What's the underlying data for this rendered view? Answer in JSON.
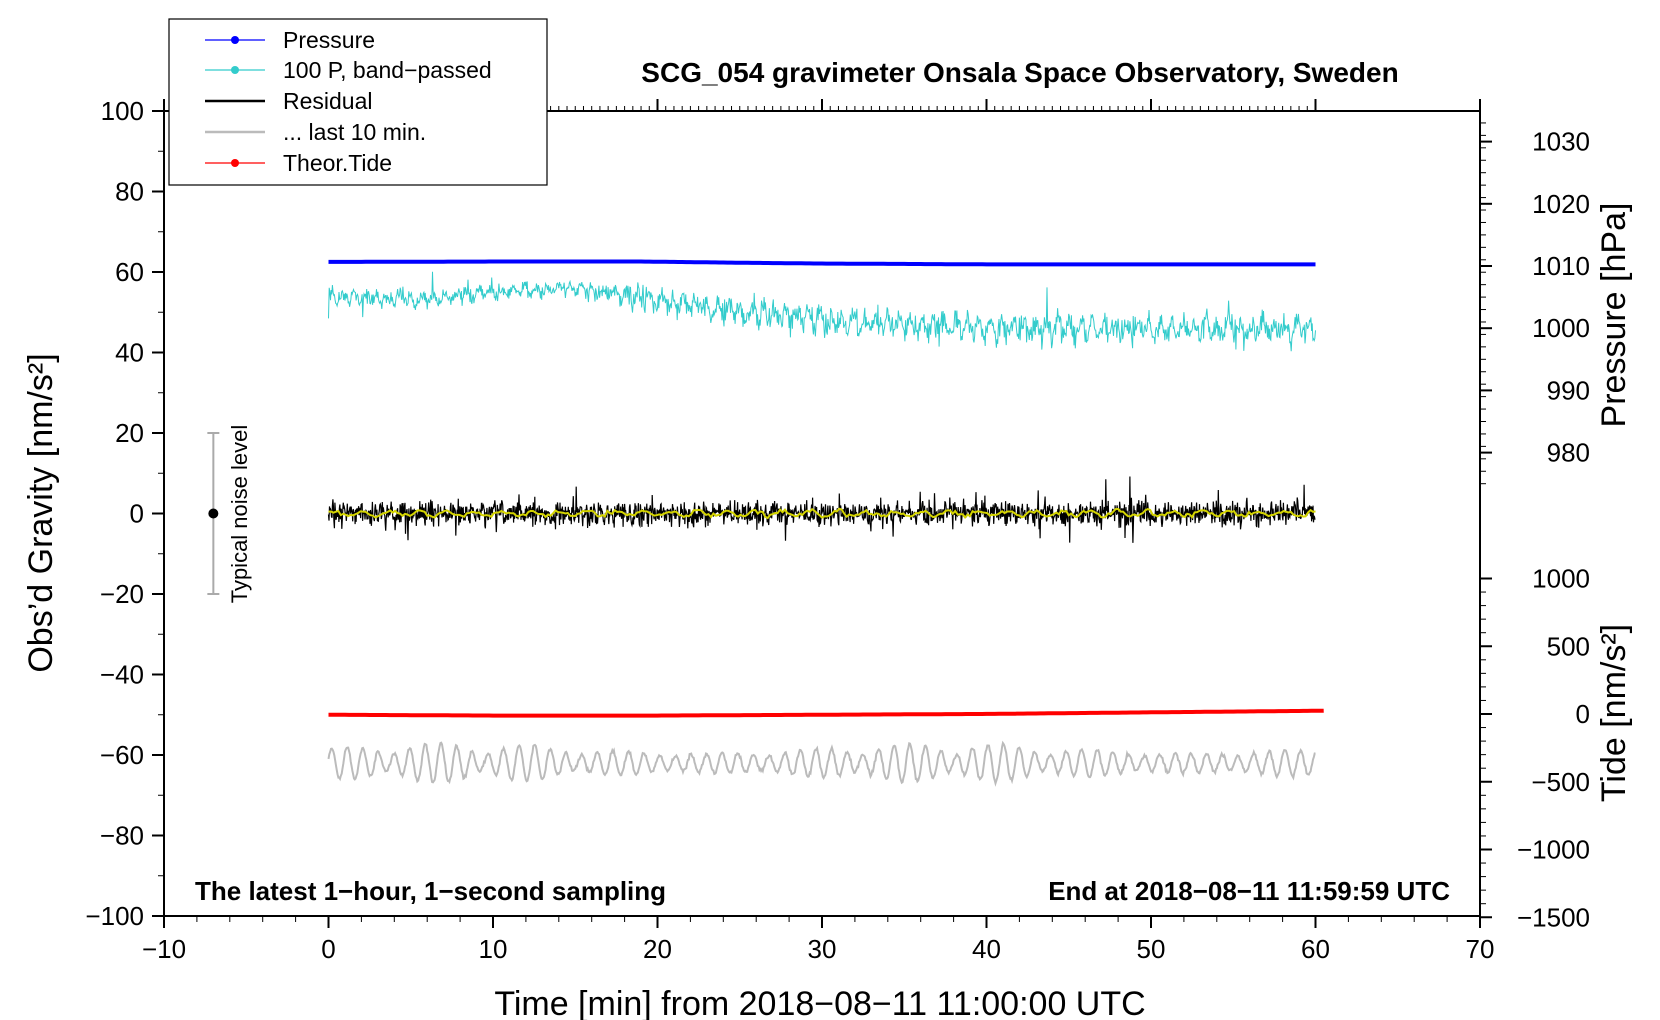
{
  "chart_data": {
    "type": "line",
    "title": "SCG_054 gravimeter Onsala Space Observatory, Sweden",
    "xlabel": "Time [min] from 2018−08−11 11:00:00 UTC",
    "ylabel_left": "Obs’d Gravity [nm/s²]",
    "ylabel_right_top": "Pressure [hPa]",
    "ylabel_right_bottom": "Tide [nm/s²]",
    "xlim": [
      -10,
      70
    ],
    "ylim_left": [
      -100,
      100
    ],
    "x_ticks": [
      "−10",
      "0",
      "10",
      "20",
      "30",
      "40",
      "50",
      "60",
      "70"
    ],
    "x_tick_values": [
      -10,
      0,
      10,
      20,
      30,
      40,
      50,
      60,
      70
    ],
    "y_left_ticks": [
      "100",
      "80",
      "60",
      "40",
      "20",
      "0",
      "−20",
      "−40",
      "−60",
      "−80",
      "−100"
    ],
    "y_left_tick_values": [
      100,
      80,
      60,
      40,
      20,
      0,
      -20,
      -40,
      -60,
      -80,
      -100
    ],
    "pressure_ticks": [
      "1030",
      "1020",
      "1010",
      "1000",
      "990",
      "980"
    ],
    "pressure_tick_values": [
      1030,
      1020,
      1010,
      1000,
      990,
      980
    ],
    "tide_ticks": [
      "1000",
      "500",
      "0",
      "−500",
      "−1000",
      "−1500"
    ],
    "tide_tick_values": [
      1000,
      500,
      0,
      -500,
      -1000,
      -1500
    ],
    "legend": [
      {
        "label": "Pressure",
        "color": "#0000ff",
        "marker": true
      },
      {
        "label": "100 P, band−passed",
        "color": "#33cccc",
        "marker": true
      },
      {
        "label": "Residual",
        "color": "#000000",
        "marker": false
      },
      {
        "label": "... last 10 min.",
        "color": "#bbbbbb",
        "marker": false
      },
      {
        "label": "Theor.Tide",
        "color": "#ff0000",
        "marker": true
      }
    ],
    "series": [
      {
        "name": "Pressure",
        "axis": "left",
        "color": "#0000ff",
        "x": [
          0,
          10,
          19,
          25,
          30,
          35,
          40,
          50,
          60
        ],
        "y": [
          62.5,
          62.6,
          62.6,
          62.3,
          62.1,
          62.0,
          61.9,
          61.9,
          61.9
        ]
      },
      {
        "name": "100 P, band−passed",
        "axis": "left",
        "color": "#33cccc",
        "x": [
          0,
          5,
          10,
          15,
          20,
          25,
          30,
          35,
          40,
          45,
          50,
          55,
          60
        ],
        "y": [
          54,
          53,
          55,
          56,
          53,
          50,
          48,
          47,
          46,
          46,
          46,
          46,
          46
        ]
      },
      {
        "name": "Residual",
        "axis": "left",
        "color": "#000000",
        "x": [
          0,
          60
        ],
        "y": [
          0,
          0
        ],
        "noise_amplitude": 5
      },
      {
        "name": "Residual smoothed",
        "axis": "left",
        "color": "#d4d400",
        "x": [
          0,
          60
        ],
        "y": [
          0,
          0
        ]
      },
      {
        "name": "... last 10 min.",
        "axis": "left",
        "color": "#bbbbbb",
        "x": [
          0,
          60
        ],
        "y": [
          -62,
          -62
        ],
        "oscillation_amplitude": 5
      },
      {
        "name": "Theor.Tide",
        "axis": "left",
        "color": "#ff0000",
        "x": [
          0,
          10,
          20,
          30,
          40,
          50,
          60.5
        ],
        "y": [
          -50,
          -50.2,
          -50.2,
          -50,
          -49.8,
          -49.4,
          -49
        ]
      }
    ],
    "noise_bar": {
      "label": "Typical noise level",
      "x": -7,
      "y": 0,
      "range": [
        -20,
        20
      ]
    },
    "annotation_left": "The latest 1−hour, 1−second sampling",
    "annotation_right": "End at 2018−08−11 11:59:59 UTC"
  }
}
